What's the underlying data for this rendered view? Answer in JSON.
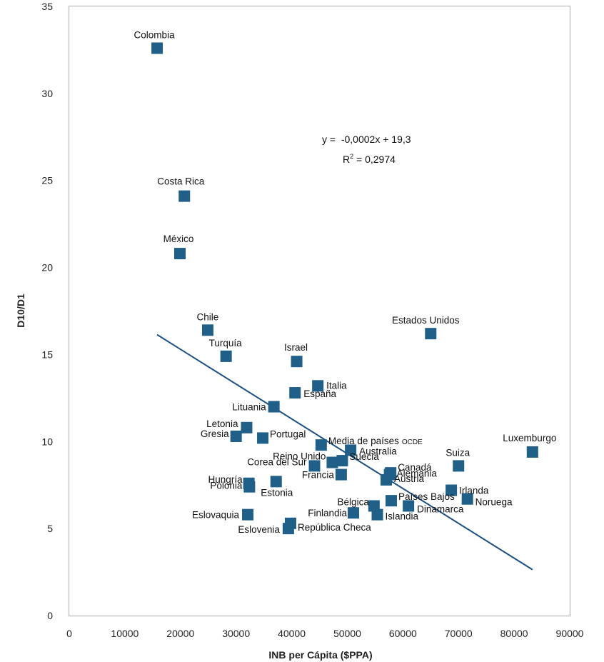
{
  "chart_data": {
    "type": "scatter",
    "xlabel": "INB per Cápita ($PPA)",
    "ylabel": "D10/D1",
    "xlim": [
      0,
      90000
    ],
    "ylim": [
      0,
      35
    ],
    "xticks": [
      0,
      10000,
      20000,
      30000,
      40000,
      50000,
      60000,
      70000,
      80000,
      90000
    ],
    "yticks": [
      0,
      5,
      10,
      15,
      20,
      25,
      30,
      35
    ],
    "marker_color": "#1f5f88",
    "trend_color": "#1c4f82",
    "grid": false,
    "points": [
      {
        "label": "Colombia",
        "x": 15800,
        "y": 32.6
      },
      {
        "label": "Costa Rica",
        "x": 20700,
        "y": 24.1
      },
      {
        "label": "México",
        "x": 19900,
        "y": 20.8
      },
      {
        "label": "Chile",
        "x": 24900,
        "y": 16.4
      },
      {
        "label": "Turquía",
        "x": 28200,
        "y": 14.9
      },
      {
        "label": "Israel",
        "x": 40900,
        "y": 14.6
      },
      {
        "label": "Estados Unidos",
        "x": 65000,
        "y": 16.2
      },
      {
        "label": "Italia",
        "x": 44700,
        "y": 13.2
      },
      {
        "label": "España",
        "x": 40600,
        "y": 12.8
      },
      {
        "label": "Lituania",
        "x": 36800,
        "y": 12.0
      },
      {
        "label": "Letonia",
        "x": 31900,
        "y": 10.8
      },
      {
        "label": "Gresia",
        "x": 30000,
        "y": 10.3
      },
      {
        "label": "Portugal",
        "x": 34800,
        "y": 10.2
      },
      {
        "label": "Media de países",
        "label_suffix": "OCDE",
        "x": 45300,
        "y": 9.8
      },
      {
        "label": "Australia",
        "x": 50600,
        "y": 9.5
      },
      {
        "label": "Reino Unido",
        "x": 47300,
        "y": 8.8
      },
      {
        "label": "Suecia",
        "x": 49100,
        "y": 8.9
      },
      {
        "label": "Corea del Sur",
        "x": 44100,
        "y": 8.6
      },
      {
        "label": "Francia",
        "x": 48900,
        "y": 8.1
      },
      {
        "label": "Canadá",
        "x": 57800,
        "y": 8.2
      },
      {
        "label": "Alemania",
        "x": 57600,
        "y": 8.1
      },
      {
        "label": "Austria",
        "x": 57000,
        "y": 7.8
      },
      {
        "label": "Suiza",
        "x": 70000,
        "y": 8.6
      },
      {
        "label": "Luxemburgo",
        "x": 83300,
        "y": 9.4
      },
      {
        "label": "Hungría",
        "x": 32300,
        "y": 7.6
      },
      {
        "label": "Polonia",
        "x": 32400,
        "y": 7.4
      },
      {
        "label": "Estonia",
        "x": 37200,
        "y": 7.7
      },
      {
        "label": "Irlanda",
        "x": 68700,
        "y": 7.2
      },
      {
        "label": "Noruega",
        "x": 71600,
        "y": 6.7
      },
      {
        "label": "Países Bajos",
        "x": 57900,
        "y": 6.6
      },
      {
        "label": "Dinamarca",
        "x": 61000,
        "y": 6.3
      },
      {
        "label": "Bélgica",
        "x": 54800,
        "y": 6.3
      },
      {
        "label": "Finlandia",
        "x": 51100,
        "y": 5.9
      },
      {
        "label": "Islandia",
        "x": 55400,
        "y": 5.8
      },
      {
        "label": "Eslovaquia",
        "x": 32100,
        "y": 5.8
      },
      {
        "label": "República Checa",
        "x": 39800,
        "y": 5.3
      },
      {
        "label": "Eslovenia",
        "x": 39400,
        "y": 5.0
      }
    ],
    "trendline": {
      "x": [
        15800,
        83300
      ],
      "equation": "y =  -0,0002x + 19,3",
      "r2_prefix": "R",
      "r2_sup": "2",
      "r2_value": " = 0,2974"
    }
  }
}
